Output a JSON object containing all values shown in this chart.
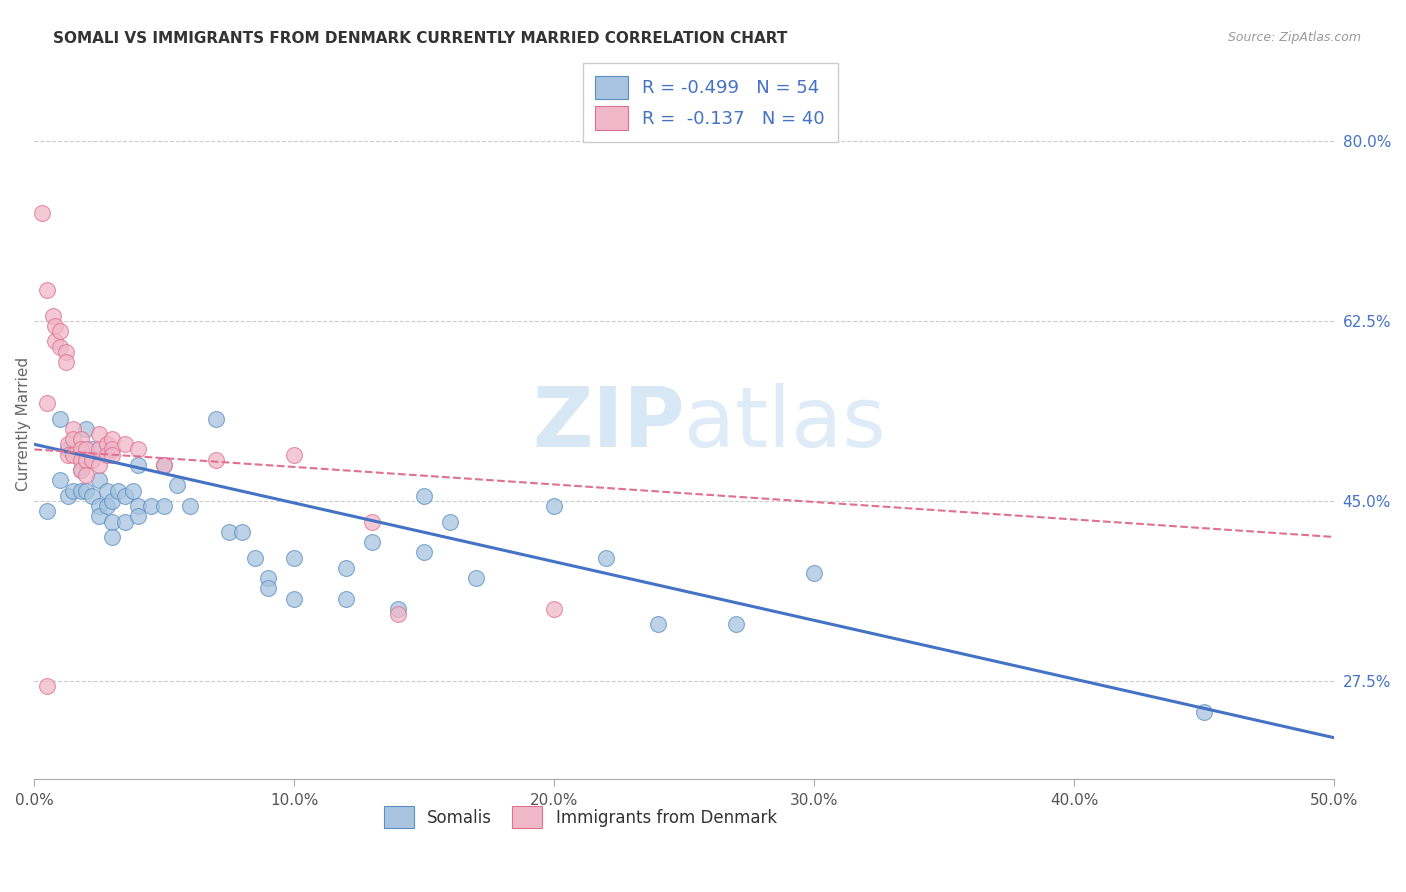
{
  "title": "SOMALI VS IMMIGRANTS FROM DENMARK CURRENTLY MARRIED CORRELATION CHART",
  "source": "Source: ZipAtlas.com",
  "ylabel": "Currently Married",
  "yticks": [
    0.275,
    0.45,
    0.625,
    0.8
  ],
  "ytick_labels": [
    "27.5%",
    "45.0%",
    "62.5%",
    "80.0%"
  ],
  "xticks": [
    0.0,
    0.1,
    0.2,
    0.3,
    0.4,
    0.5
  ],
  "xtick_labels": [
    "0.0%",
    "10.0%",
    "20.0%",
    "30.0%",
    "40.0%",
    "50.0%"
  ],
  "xlim": [
    0.0,
    0.5
  ],
  "ylim": [
    0.18,
    0.87
  ],
  "watermark_zip": "ZIP",
  "watermark_atlas": "atlas",
  "legend_line1": "R = -0.499   N = 54",
  "legend_line2": "R =  -0.137   N = 40",
  "somali_fill": "#a8c4e0",
  "somali_edge": "#5a8fc4",
  "denmark_fill": "#f0b8c8",
  "denmark_edge": "#e07090",
  "somali_line_color": "#4472c4",
  "denmark_line_color": "#e07090",
  "grid_color": "#cccccc",
  "somali_scatter": [
    [
      0.005,
      0.44
    ],
    [
      0.01,
      0.53
    ],
    [
      0.01,
      0.47
    ],
    [
      0.013,
      0.5
    ],
    [
      0.013,
      0.455
    ],
    [
      0.015,
      0.46
    ],
    [
      0.018,
      0.48
    ],
    [
      0.018,
      0.46
    ],
    [
      0.02,
      0.52
    ],
    [
      0.02,
      0.46
    ],
    [
      0.022,
      0.5
    ],
    [
      0.022,
      0.455
    ],
    [
      0.025,
      0.47
    ],
    [
      0.025,
      0.445
    ],
    [
      0.025,
      0.435
    ],
    [
      0.028,
      0.46
    ],
    [
      0.028,
      0.445
    ],
    [
      0.03,
      0.45
    ],
    [
      0.03,
      0.43
    ],
    [
      0.03,
      0.415
    ],
    [
      0.032,
      0.46
    ],
    [
      0.035,
      0.455
    ],
    [
      0.035,
      0.43
    ],
    [
      0.038,
      0.46
    ],
    [
      0.04,
      0.485
    ],
    [
      0.04,
      0.445
    ],
    [
      0.04,
      0.435
    ],
    [
      0.045,
      0.445
    ],
    [
      0.05,
      0.485
    ],
    [
      0.05,
      0.445
    ],
    [
      0.055,
      0.465
    ],
    [
      0.06,
      0.445
    ],
    [
      0.07,
      0.53
    ],
    [
      0.075,
      0.42
    ],
    [
      0.08,
      0.42
    ],
    [
      0.085,
      0.395
    ],
    [
      0.09,
      0.375
    ],
    [
      0.09,
      0.365
    ],
    [
      0.1,
      0.395
    ],
    [
      0.1,
      0.355
    ],
    [
      0.12,
      0.385
    ],
    [
      0.12,
      0.355
    ],
    [
      0.13,
      0.41
    ],
    [
      0.14,
      0.345
    ],
    [
      0.15,
      0.455
    ],
    [
      0.15,
      0.4
    ],
    [
      0.16,
      0.43
    ],
    [
      0.17,
      0.375
    ],
    [
      0.2,
      0.445
    ],
    [
      0.22,
      0.395
    ],
    [
      0.24,
      0.33
    ],
    [
      0.27,
      0.33
    ],
    [
      0.3,
      0.38
    ],
    [
      0.45,
      0.245
    ]
  ],
  "denmark_scatter": [
    [
      0.003,
      0.73
    ],
    [
      0.005,
      0.655
    ],
    [
      0.005,
      0.545
    ],
    [
      0.007,
      0.63
    ],
    [
      0.008,
      0.62
    ],
    [
      0.008,
      0.605
    ],
    [
      0.01,
      0.615
    ],
    [
      0.01,
      0.6
    ],
    [
      0.012,
      0.595
    ],
    [
      0.012,
      0.585
    ],
    [
      0.013,
      0.505
    ],
    [
      0.013,
      0.495
    ],
    [
      0.015,
      0.52
    ],
    [
      0.015,
      0.51
    ],
    [
      0.015,
      0.495
    ],
    [
      0.018,
      0.51
    ],
    [
      0.018,
      0.5
    ],
    [
      0.018,
      0.49
    ],
    [
      0.018,
      0.48
    ],
    [
      0.02,
      0.5
    ],
    [
      0.02,
      0.49
    ],
    [
      0.02,
      0.475
    ],
    [
      0.022,
      0.49
    ],
    [
      0.025,
      0.515
    ],
    [
      0.025,
      0.5
    ],
    [
      0.025,
      0.485
    ],
    [
      0.028,
      0.505
    ],
    [
      0.028,
      0.495
    ],
    [
      0.03,
      0.51
    ],
    [
      0.03,
      0.5
    ],
    [
      0.03,
      0.495
    ],
    [
      0.035,
      0.505
    ],
    [
      0.04,
      0.5
    ],
    [
      0.05,
      0.485
    ],
    [
      0.07,
      0.49
    ],
    [
      0.1,
      0.495
    ],
    [
      0.13,
      0.43
    ],
    [
      0.2,
      0.345
    ],
    [
      0.005,
      0.27
    ],
    [
      0.14,
      0.34
    ]
  ]
}
